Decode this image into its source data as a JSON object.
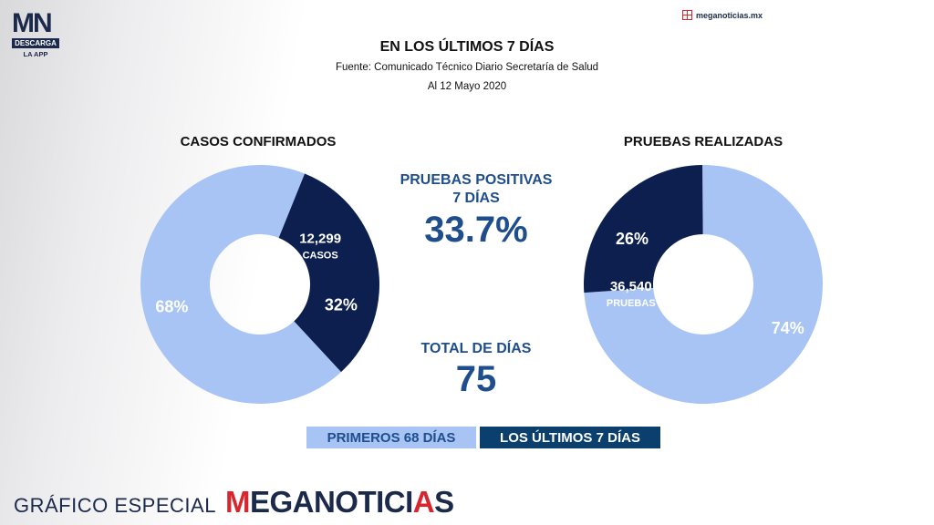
{
  "brand": {
    "logo_letters": "MN",
    "logo_bar": "DESCARGA",
    "logo_sub": "LA APP",
    "site": "meganoticias.mx"
  },
  "header": {
    "title": "EN LOS ÚLTIMOS 7 DÍAS",
    "source": "Fuente: Comunicado Técnico Diario Secretaría de Salud",
    "date": "Al 12 Mayo 2020"
  },
  "middle": {
    "positive_label": "PRUEBAS POSITIVAS\n7 DÍAS",
    "positive_label_line1": "PRUEBAS POSITIVAS",
    "positive_label_line2": "7 DÍAS",
    "positive_value": "33.7%",
    "total_label": "TOTAL DE DÍAS",
    "total_value": "75"
  },
  "legend": {
    "first": "PRIMEROS 68 DÍAS",
    "last": "LOS ÚLTIMOS 7 DÍAS"
  },
  "footer": {
    "special": "GRÁFICO ESPECIAL",
    "brand_m": "M",
    "brand_rest1": "EGANOTICI",
    "brand_a": "A",
    "brand_s": "S"
  },
  "colors": {
    "light": "#a7c4f5",
    "dark": "#0c1f4f",
    "accent_text": "#1f4e8c",
    "legend_dark": "#0b3f6e"
  },
  "chart_data": [
    {
      "type": "pie",
      "title": "CASOS CONFIRMADOS",
      "slices": [
        {
          "label": "68%",
          "value": 68,
          "color": "#a7c4f5"
        },
        {
          "label": "32%",
          "value": 32,
          "color": "#0c1f4f",
          "note_value": "12,299",
          "note_unit": "CASOS"
        }
      ]
    },
    {
      "type": "pie",
      "title": "PRUEBAS REALIZADAS",
      "slices": [
        {
          "label": "74%",
          "value": 74,
          "color": "#a7c4f5"
        },
        {
          "label": "26%",
          "value": 26,
          "color": "#0c1f4f",
          "note_value": "36,540",
          "note_unit": "PRUEBAS"
        }
      ]
    }
  ]
}
